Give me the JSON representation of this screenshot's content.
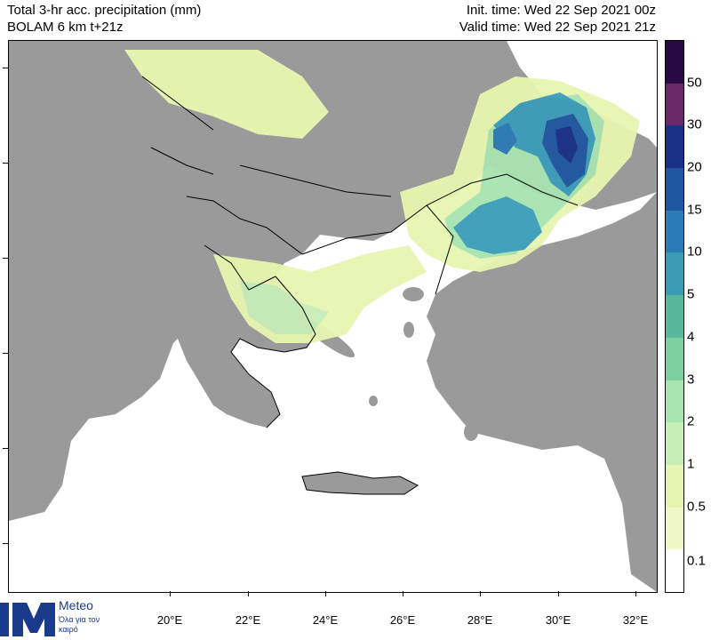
{
  "header": {
    "title_line1": "Total 3-hr acc. precipitation (mm)",
    "title_line2": "BOLAM 6 km t+21z",
    "init_time": "Init. time: Wed 22 Sep 2021 00z",
    "valid_time": "Valid time: Wed 22 Sep 2021 21z"
  },
  "map": {
    "x_axis_ticks": [
      "20°E",
      "22°E",
      "24°E",
      "26°E",
      "28°E",
      "30°E",
      "32°E"
    ],
    "colors": {
      "land": "#9a9a9a",
      "sea": "#ffffff",
      "borders": "#000000"
    }
  },
  "legend": {
    "levels": [
      "0.1",
      "0.5",
      "1",
      "2",
      "3",
      "4",
      "5",
      "10",
      "15",
      "20",
      "30",
      "50"
    ],
    "colors": [
      "#ffffff",
      "#f0f8c8",
      "#e8f5b0",
      "#c8eeb8",
      "#a8e4b0",
      "#7ccf9e",
      "#58b89c",
      "#3b9cb8",
      "#2b7bb4",
      "#1f56a0",
      "#1a2f86",
      "#6a2a6a",
      "#2a0845"
    ]
  },
  "logo": {
    "name": "Meteo",
    "tagline": "Όλα για τον καιρό",
    "icon": "meteo-m-logo-icon"
  }
}
